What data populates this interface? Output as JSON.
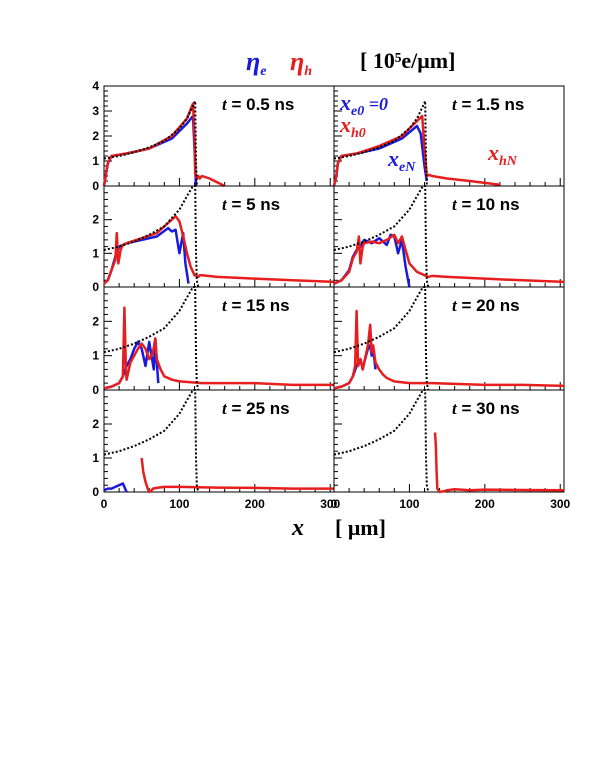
{
  "header": {
    "eta_e_main": "η",
    "eta_e_sub": "e",
    "eta_h_main": "η",
    "eta_h_sub": "h",
    "unit": "[ 10⁵e/μm]"
  },
  "xaxis": {
    "var": "x",
    "unit": "[ μm]"
  },
  "colors": {
    "electron": "#1a1adc",
    "hole": "#e61e1e",
    "field": "#000000"
  },
  "annotations": {
    "xe0": "x",
    "xe0_sub": "e0",
    "xe0_eq": " =0",
    "xh0": "x",
    "xh0_sub": "h0",
    "xeN": "x",
    "xeN_sub": "eN",
    "xhN": "x",
    "xhN_sub": "hN"
  },
  "chart_data": [
    {
      "type": "line",
      "panel": "t = 0.5 ns",
      "time_label": "t",
      "time_value": "= 0.5 ns",
      "xlim": [
        0,
        305
      ],
      "ylim": [
        0,
        4
      ],
      "yticks": [
        "0",
        "1",
        "2",
        "3",
        "4"
      ],
      "xticks": [],
      "series": [
        {
          "name": "η_e",
          "x": [
            0,
            5,
            10,
            30,
            60,
            90,
            110,
            118,
            120,
            122
          ],
          "y": [
            0,
            0.9,
            1.2,
            1.3,
            1.5,
            1.9,
            2.5,
            2.8,
            1.5,
            0
          ]
        },
        {
          "name": "η_h",
          "x": [
            0,
            5,
            10,
            30,
            60,
            90,
            110,
            118,
            120,
            121,
            123,
            125,
            127,
            130,
            140,
            160
          ],
          "y": [
            0,
            0.9,
            1.2,
            1.3,
            1.5,
            2.0,
            2.7,
            3.3,
            2.0,
            0.5,
            0.3,
            0.4,
            0.3,
            0.4,
            0.3,
            0
          ]
        },
        {
          "name": "field",
          "x": [
            0,
            20,
            40,
            60,
            80,
            100,
            110,
            118,
            121,
            122,
            123
          ],
          "y": [
            1.1,
            1.2,
            1.35,
            1.55,
            1.8,
            2.3,
            2.7,
            3.2,
            3.4,
            1.0,
            0
          ]
        }
      ]
    },
    {
      "type": "line",
      "panel": "t = 1.5 ns",
      "time_label": "t",
      "time_value": "= 1.5 ns",
      "xlim": [
        0,
        305
      ],
      "ylim": [
        0,
        4
      ],
      "yticks": [],
      "xticks": [],
      "series": [
        {
          "name": "η_e",
          "x": [
            0,
            3,
            5,
            10,
            30,
            60,
            90,
            110,
            115,
            120,
            123
          ],
          "y": [
            0,
            0.4,
            0.9,
            1.2,
            1.3,
            1.5,
            1.9,
            2.4,
            2.1,
            0.8,
            0.2
          ]
        },
        {
          "name": "η_h",
          "x": [
            0,
            3,
            5,
            10,
            30,
            60,
            90,
            110,
            117,
            120,
            123,
            126,
            130,
            150,
            180,
            220
          ],
          "y": [
            0,
            0.4,
            0.9,
            1.2,
            1.3,
            1.6,
            2.0,
            2.6,
            2.8,
            1.5,
            0.4,
            0.45,
            0.4,
            0.3,
            0.2,
            0.05
          ]
        },
        {
          "name": "field",
          "x": [
            0,
            20,
            40,
            60,
            80,
            100,
            110,
            118,
            121,
            122,
            123
          ],
          "y": [
            1.1,
            1.2,
            1.35,
            1.55,
            1.8,
            2.3,
            2.7,
            3.2,
            3.4,
            1.0,
            0
          ]
        }
      ]
    },
    {
      "type": "line",
      "panel": "t = 5 ns",
      "time_label": "t",
      "time_value": "= 5  ns",
      "xlim": [
        0,
        305
      ],
      "ylim": [
        0,
        3
      ],
      "yticks": [
        "0",
        "1",
        "2"
      ],
      "xticks": [],
      "series": [
        {
          "name": "η_e",
          "x": [
            0,
            5,
            10,
            15,
            20,
            25,
            30,
            50,
            70,
            85,
            90,
            95,
            100,
            105,
            108,
            112
          ],
          "y": [
            0.1,
            0.2,
            0.5,
            0.9,
            1.2,
            1.25,
            1.3,
            1.4,
            1.5,
            1.75,
            1.65,
            1.7,
            1.0,
            1.6,
            0.7,
            0.1
          ]
        },
        {
          "name": "η_h",
          "x": [
            0,
            5,
            10,
            15,
            17,
            19,
            22,
            25,
            30,
            50,
            70,
            85,
            95,
            100,
            105,
            110,
            115,
            120,
            125,
            127,
            130,
            150,
            200,
            250,
            305
          ],
          "y": [
            0.1,
            0.2,
            0.5,
            0.8,
            1.6,
            0.7,
            1.1,
            1.25,
            1.3,
            1.45,
            1.6,
            1.9,
            2.1,
            1.95,
            1.5,
            1.0,
            0.6,
            0.35,
            0.3,
            0.35,
            0.35,
            0.3,
            0.25,
            0.2,
            0.15
          ]
        },
        {
          "name": "field",
          "x": [
            0,
            20,
            40,
            60,
            80,
            100,
            110,
            118,
            121,
            122,
            123,
            125
          ],
          "y": [
            1.1,
            1.2,
            1.35,
            1.55,
            1.8,
            2.3,
            2.7,
            3.2,
            3.4,
            1.0,
            0.2,
            0
          ]
        }
      ]
    },
    {
      "type": "line",
      "panel": "t = 10 ns",
      "time_label": "t",
      "time_value": "= 10  ns",
      "xlim": [
        0,
        305
      ],
      "ylim": [
        0,
        3
      ],
      "yticks": [],
      "xticks": [],
      "series": [
        {
          "name": "η_e",
          "x": [
            0,
            10,
            20,
            25,
            30,
            35,
            40,
            50,
            60,
            70,
            75,
            80,
            85,
            90,
            95,
            100
          ],
          "y": [
            0.1,
            0.2,
            0.5,
            0.9,
            1.1,
            1.2,
            1.4,
            1.3,
            1.45,
            1.25,
            1.55,
            1.5,
            1.0,
            1.4,
            0.6,
            0.0
          ]
        },
        {
          "name": "η_h",
          "x": [
            0,
            10,
            20,
            25,
            30,
            33,
            35,
            38,
            40,
            50,
            60,
            70,
            80,
            85,
            90,
            95,
            100,
            110,
            120,
            125,
            130,
            150,
            200,
            250,
            305
          ],
          "y": [
            0.1,
            0.2,
            0.45,
            0.85,
            1.05,
            1.5,
            0.7,
            1.2,
            1.3,
            1.35,
            1.3,
            1.4,
            1.55,
            1.3,
            1.5,
            1.1,
            0.7,
            0.45,
            0.35,
            0.3,
            0.33,
            0.3,
            0.25,
            0.2,
            0.15
          ]
        },
        {
          "name": "field",
          "x": [
            0,
            20,
            40,
            60,
            80,
            100,
            110,
            118,
            121,
            122,
            123,
            125
          ],
          "y": [
            1.1,
            1.2,
            1.35,
            1.55,
            1.8,
            2.3,
            2.7,
            3.2,
            3.4,
            1.0,
            0.2,
            0
          ]
        }
      ]
    },
    {
      "type": "line",
      "panel": "t = 15 ns",
      "time_label": "t",
      "time_value": "= 15  ns",
      "xlim": [
        0,
        305
      ],
      "ylim": [
        0,
        3
      ],
      "yticks": [
        "0",
        "1",
        "2"
      ],
      "xticks": [],
      "series": [
        {
          "name": "η_e",
          "x": [
            0,
            10,
            20,
            25,
            30,
            35,
            40,
            45,
            50,
            55,
            60,
            63,
            66,
            68,
            70,
            72
          ],
          "y": [
            0.05,
            0.1,
            0.2,
            0.4,
            0.7,
            0.9,
            1.2,
            1.4,
            1.2,
            0.7,
            1.4,
            1.0,
            0.6,
            1.5,
            0.8,
            0.2
          ]
        },
        {
          "name": "η_h",
          "x": [
            0,
            10,
            20,
            25,
            27,
            29,
            30,
            32,
            35,
            40,
            45,
            50,
            55,
            60,
            65,
            68,
            70,
            75,
            80,
            90,
            100,
            130,
            200,
            250,
            305
          ],
          "y": [
            0.05,
            0.1,
            0.2,
            0.4,
            2.4,
            0.6,
            0.3,
            0.5,
            0.8,
            1.0,
            1.2,
            1.35,
            1.2,
            0.9,
            1.1,
            1.5,
            0.9,
            0.6,
            0.4,
            0.3,
            0.25,
            0.2,
            0.2,
            0.15,
            0.15
          ]
        },
        {
          "name": "field",
          "x": [
            0,
            20,
            40,
            60,
            80,
            100,
            110,
            118,
            121,
            122,
            123,
            125
          ],
          "y": [
            1.1,
            1.2,
            1.35,
            1.55,
            1.8,
            2.3,
            2.7,
            3.2,
            3.4,
            1.0,
            0.2,
            0
          ]
        }
      ]
    },
    {
      "type": "line",
      "panel": "t = 20 ns",
      "time_label": "t",
      "time_value": "= 20  ns",
      "xlim": [
        0,
        305
      ],
      "ylim": [
        0,
        3
      ],
      "yticks": [],
      "xticks": [],
      "series": [
        {
          "name": "η_e",
          "x": [
            0,
            10,
            20,
            25,
            30,
            35,
            38,
            40,
            45,
            48,
            50,
            52,
            55
          ],
          "y": [
            0.05,
            0.1,
            0.2,
            0.4,
            0.7,
            0.9,
            0.6,
            0.8,
            1.2,
            1.3,
            1.0,
            1.2,
            0.6
          ]
        },
        {
          "name": "η_h",
          "x": [
            0,
            10,
            20,
            25,
            28,
            30,
            32,
            35,
            38,
            40,
            45,
            48,
            50,
            52,
            55,
            60,
            65,
            70,
            80,
            100,
            130,
            200,
            250,
            305
          ],
          "y": [
            0.05,
            0.1,
            0.2,
            0.4,
            0.7,
            2.3,
            0.7,
            0.9,
            0.6,
            0.8,
            1.3,
            1.9,
            1.1,
            1.3,
            0.8,
            0.6,
            0.45,
            0.35,
            0.25,
            0.2,
            0.2,
            0.15,
            0.15,
            0.12
          ]
        },
        {
          "name": "field",
          "x": [
            0,
            20,
            40,
            60,
            80,
            100,
            110,
            118,
            121,
            122,
            123,
            125
          ],
          "y": [
            1.1,
            1.2,
            1.35,
            1.55,
            1.8,
            2.3,
            2.7,
            3.2,
            3.4,
            1.0,
            0.2,
            0
          ]
        }
      ]
    },
    {
      "type": "line",
      "panel": "t = 25 ns",
      "time_label": "t",
      "time_value": "= 25  ns",
      "xlim": [
        0,
        305
      ],
      "ylim": [
        0,
        3
      ],
      "yticks": [
        "0",
        "1",
        "2"
      ],
      "xticks": [
        "0",
        "100",
        "200",
        "300"
      ],
      "series": [
        {
          "name": "η_e",
          "x": [
            0,
            5,
            10,
            15,
            20,
            25,
            28,
            30
          ],
          "y": [
            0.05,
            0.1,
            0.1,
            0.15,
            0.2,
            0.25,
            0.1,
            0.0
          ]
        },
        {
          "name": "η_h",
          "x": [
            50,
            52,
            55,
            58,
            60,
            63,
            65,
            70,
            80,
            100,
            150,
            200,
            250,
            305
          ],
          "y": [
            1.0,
            0.6,
            0.3,
            0.1,
            0.0,
            0.05,
            0.1,
            0.12,
            0.15,
            0.15,
            0.13,
            0.12,
            0.1,
            0.1
          ]
        },
        {
          "name": "field",
          "x": [
            0,
            20,
            40,
            60,
            80,
            100,
            110,
            118,
            121,
            122,
            123,
            125
          ],
          "y": [
            1.1,
            1.2,
            1.35,
            1.55,
            1.8,
            2.3,
            2.7,
            3.2,
            3.4,
            1.0,
            0.2,
            0
          ]
        }
      ]
    },
    {
      "type": "line",
      "panel": "t = 30 ns",
      "time_label": "t",
      "time_value": "= 30  ns",
      "xlim": [
        0,
        305
      ],
      "ylim": [
        0,
        3
      ],
      "yticks": [],
      "xticks": [
        "0",
        "100",
        "200",
        "300"
      ],
      "series": [
        {
          "name": "η_h",
          "x": [
            134,
            135,
            136,
            137,
            140,
            145,
            150,
            160,
            180,
            200,
            250,
            305
          ],
          "y": [
            1.75,
            1.4,
            0.6,
            0.1,
            0.0,
            0.02,
            0.05,
            0.08,
            0.05,
            0.07,
            0.06,
            0.05
          ]
        },
        {
          "name": "field",
          "x": [
            0,
            20,
            40,
            60,
            80,
            100,
            110,
            118,
            121,
            122,
            123,
            125
          ],
          "y": [
            1.1,
            1.2,
            1.35,
            1.55,
            1.8,
            2.3,
            2.7,
            3.2,
            3.4,
            1.0,
            0.2,
            0
          ]
        }
      ]
    }
  ]
}
